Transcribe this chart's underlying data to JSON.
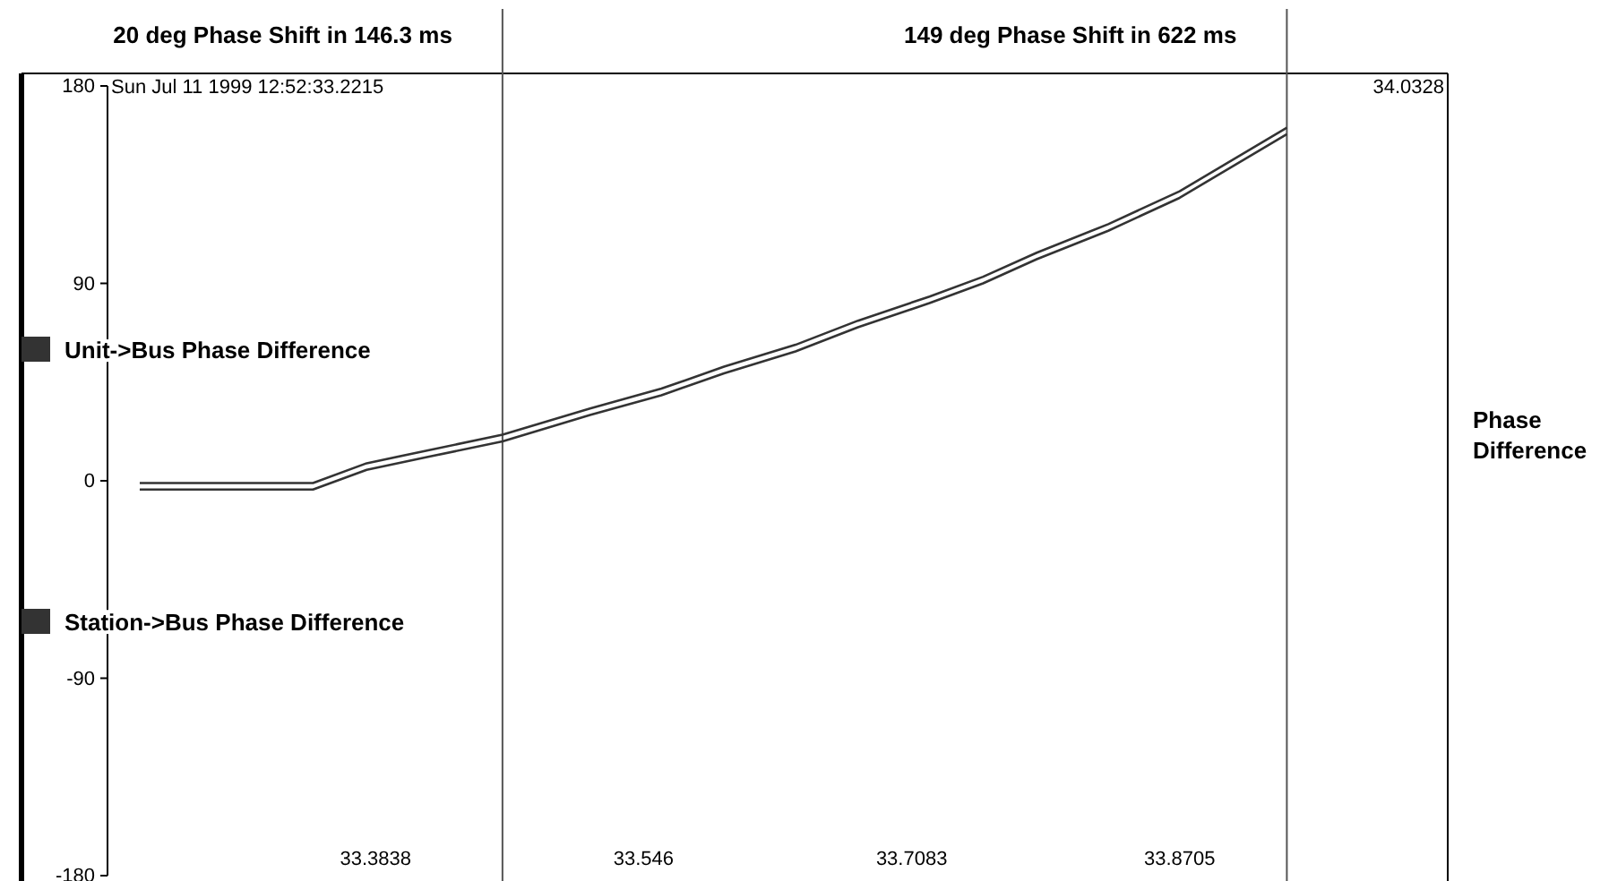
{
  "chart_data": {
    "type": "line",
    "ylabel": "Phase Difference",
    "xlim": [
      33.2215,
      34.0328
    ],
    "xticks": [
      33.3838,
      33.546,
      33.7083,
      33.8705
    ],
    "ylim": [
      -180,
      180
    ],
    "yticks": [
      -180,
      -90,
      0,
      90,
      180
    ],
    "grid": false,
    "legend": "left",
    "marker": "none",
    "line_style": "solid",
    "series": [
      {
        "name": "Unit->Bus Phase Difference",
        "color": "#333333",
        "x": [
          33.241,
          33.3459,
          33.3784,
          33.4162,
          33.4606,
          33.5136,
          33.5568,
          33.5947,
          33.638,
          33.6758,
          33.7191,
          33.7515,
          33.784,
          33.8273,
          33.8705,
          33.9354
        ],
        "values": [
          -1,
          -1,
          8,
          14,
          21,
          33,
          42,
          52,
          62,
          73,
          84,
          93,
          104,
          117,
          132,
          161
        ]
      },
      {
        "name": "Station->Bus Phase Difference",
        "color": "#333333",
        "x": [
          33.241,
          33.3459,
          33.3784,
          33.4162,
          33.4606,
          33.5136,
          33.5568,
          33.5947,
          33.638,
          33.6758,
          33.7191,
          33.7515,
          33.784,
          33.8273,
          33.8705,
          33.9354
        ],
        "values": [
          -4,
          -4,
          5,
          11,
          18,
          30,
          39,
          49,
          59,
          70,
          81,
          90,
          101,
          114,
          129,
          158
        ]
      }
    ],
    "ref_lines": [
      {
        "axis": "x",
        "value": 33.4606,
        "label": "20 deg Phase Shift in 146.3 ms",
        "color": "#555555"
      },
      {
        "axis": "x",
        "value": 33.9354,
        "label": "149 deg Phase Shift in 622 ms",
        "color": "#555555"
      }
    ],
    "annotations": [
      "Sun Jul 11 1999 12:52:33.2215",
      "34.0328"
    ]
  }
}
